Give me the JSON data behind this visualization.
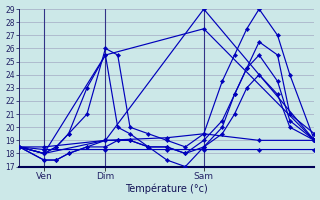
{
  "xlabel": "Température (°c)",
  "background_color": "#cce8e8",
  "plot_bg_color": "#cce8e8",
  "grid_color": "#9999bb",
  "line_color": "#0000bb",
  "ylim": [
    17,
    29
  ],
  "yticks": [
    17,
    18,
    19,
    20,
    21,
    22,
    23,
    24,
    25,
    26,
    27,
    28,
    29
  ],
  "xlim": [
    0,
    48
  ],
  "xtick_positions": [
    4,
    14,
    30
  ],
  "xtick_labels": [
    "Ven",
    "Dim",
    "Sam"
  ],
  "vline_positions": [
    4,
    14,
    30
  ],
  "series": [
    {
      "x": [
        0,
        4,
        14,
        30,
        48
      ],
      "y": [
        18.5,
        18.0,
        19.0,
        29.0,
        19.0
      ]
    },
    {
      "x": [
        0,
        4,
        14,
        30,
        48
      ],
      "y": [
        18.5,
        18.0,
        25.5,
        27.5,
        19.0
      ]
    },
    {
      "x": [
        0,
        4,
        6,
        8,
        11,
        14,
        16,
        18,
        21,
        24,
        27,
        30,
        33,
        35,
        37,
        39,
        42,
        44,
        48
      ],
      "y": [
        18.5,
        18.0,
        18.5,
        19.5,
        21.0,
        26.0,
        25.5,
        20.0,
        19.5,
        19.0,
        18.5,
        19.5,
        23.5,
        25.5,
        27.5,
        29.0,
        27.0,
        24.0,
        19.0
      ]
    },
    {
      "x": [
        0,
        4,
        6,
        8,
        11,
        14,
        16,
        18,
        21,
        24,
        27,
        30,
        33,
        35,
        37,
        39,
        42,
        44,
        48
      ],
      "y": [
        18.5,
        18.0,
        18.5,
        19.5,
        23.0,
        25.5,
        20.0,
        19.5,
        18.5,
        17.5,
        17.0,
        18.5,
        20.0,
        22.5,
        24.5,
        26.5,
        25.5,
        21.0,
        19.5
      ]
    },
    {
      "x": [
        0,
        4,
        14,
        24,
        30,
        39,
        48
      ],
      "y": [
        18.5,
        18.5,
        19.0,
        19.2,
        19.5,
        19.0,
        19.0
      ]
    },
    {
      "x": [
        0,
        4,
        14,
        24,
        30,
        39,
        48
      ],
      "y": [
        18.5,
        18.3,
        18.3,
        18.3,
        18.3,
        18.3,
        18.3
      ]
    },
    {
      "x": [
        0,
        4,
        6,
        8,
        11,
        14,
        16,
        18,
        21,
        24,
        27,
        30,
        33,
        35,
        37,
        39,
        42,
        44,
        48
      ],
      "y": [
        18.5,
        17.5,
        17.5,
        18.0,
        18.5,
        18.5,
        19.0,
        19.0,
        18.5,
        18.5,
        18.0,
        19.0,
        20.5,
        22.5,
        24.5,
        25.5,
        23.5,
        20.5,
        19.0
      ]
    },
    {
      "x": [
        0,
        4,
        6,
        8,
        11,
        14,
        16,
        18,
        21,
        24,
        27,
        30,
        33,
        35,
        37,
        39,
        42,
        44,
        48
      ],
      "y": [
        18.5,
        17.5,
        17.5,
        18.0,
        18.5,
        19.0,
        19.0,
        19.0,
        18.5,
        18.5,
        18.0,
        18.5,
        19.5,
        21.0,
        23.0,
        24.0,
        22.5,
        20.0,
        19.0
      ]
    }
  ]
}
